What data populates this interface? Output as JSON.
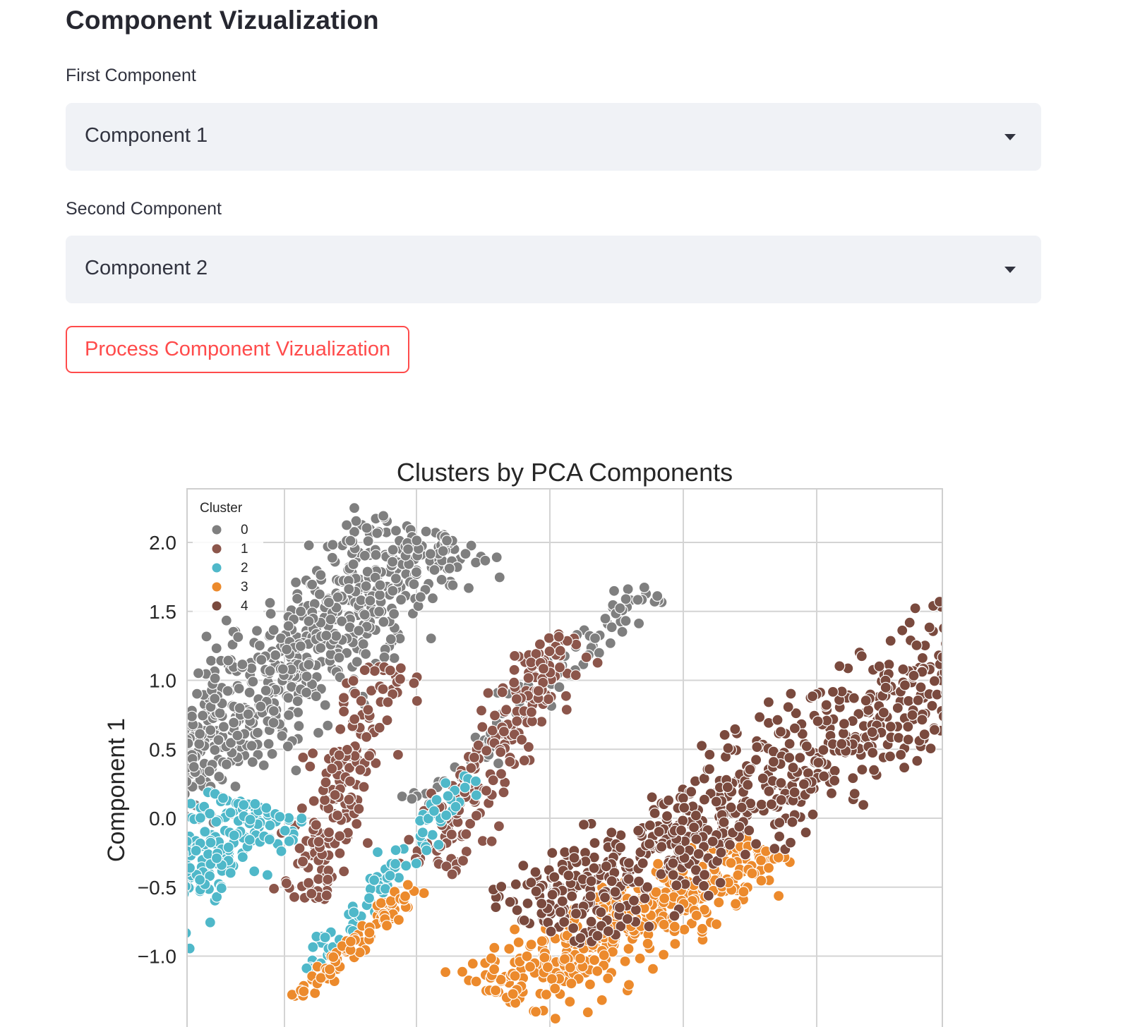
{
  "page": {
    "title": "Component Vizualization"
  },
  "first_component": {
    "label": "First Component",
    "selected": "Component 1"
  },
  "second_component": {
    "label": "Second Component",
    "selected": "Component 2"
  },
  "process_button": {
    "label": "Process Component Vizualization"
  },
  "colors": {
    "accent": "#ff4b4b",
    "select_bg": "#f0f2f6",
    "grid": "#d4d4d4",
    "cluster_0": "#7f7f7f",
    "cluster_1": "#8c564b",
    "cluster_2": "#4fb8c9",
    "cluster_3": "#ec8a2c",
    "cluster_4": "#7a4a3e"
  },
  "chart_data": {
    "type": "scatter",
    "title": "Clusters by PCA Components",
    "ylabel": "Component 1",
    "xlabel": "",
    "ylim": [
      -1.35,
      2.38
    ],
    "xlim": [
      -1.6,
      2.7
    ],
    "y_ticks": [
      "2.0",
      "1.5",
      "1.0",
      "0.5",
      "0.0",
      "−0.5",
      "−1.0"
    ],
    "grid": true,
    "legend": {
      "title": "Cluster",
      "placement": "top-left",
      "entries": [
        "0",
        "1",
        "2",
        "3",
        "4"
      ]
    },
    "series": [
      {
        "name": "0",
        "color": "#7f7f7f",
        "regions": [
          {
            "x0": -1.05,
            "y0": 0.1,
            "x1": 0.05,
            "y1": 2.1,
            "width": 0.8,
            "n": 750
          },
          {
            "x0": 0.0,
            "y0": 0.1,
            "x1": 0.9,
            "y1": 1.7,
            "width": 0.25,
            "n": 90
          }
        ]
      },
      {
        "name": "1",
        "color": "#8c564b",
        "regions": [
          {
            "x0": -0.45,
            "y0": -0.6,
            "x1": -0.1,
            "y1": 1.1,
            "width": 0.35,
            "n": 180
          },
          {
            "x0": 0.05,
            "y0": -0.4,
            "x1": 0.55,
            "y1": 1.35,
            "width": 0.35,
            "n": 200
          }
        ]
      },
      {
        "name": "2",
        "color": "#4fb8c9",
        "regions": [
          {
            "x0": -1.45,
            "y0": -1.3,
            "x1": -0.6,
            "y1": 0.1,
            "width": 0.6,
            "n": 560
          },
          {
            "x0": -0.4,
            "y0": -1.1,
            "x1": 0.2,
            "y1": 0.3,
            "width": 0.2,
            "n": 90
          }
        ]
      },
      {
        "name": "3",
        "color": "#ec8a2c",
        "regions": [
          {
            "x0": -0.45,
            "y0": -1.3,
            "x1": 0.0,
            "y1": -0.5,
            "width": 0.15,
            "n": 80
          },
          {
            "x0": 0.3,
            "y0": -1.3,
            "x1": 1.3,
            "y1": -0.2,
            "width": 0.6,
            "n": 420
          }
        ]
      },
      {
        "name": "4",
        "color": "#7a4a3e",
        "regions": [
          {
            "x0": 0.45,
            "y0": -0.8,
            "x1": 2.55,
            "y1": 1.75,
            "width": 0.8,
            "n": 820
          }
        ]
      }
    ]
  }
}
